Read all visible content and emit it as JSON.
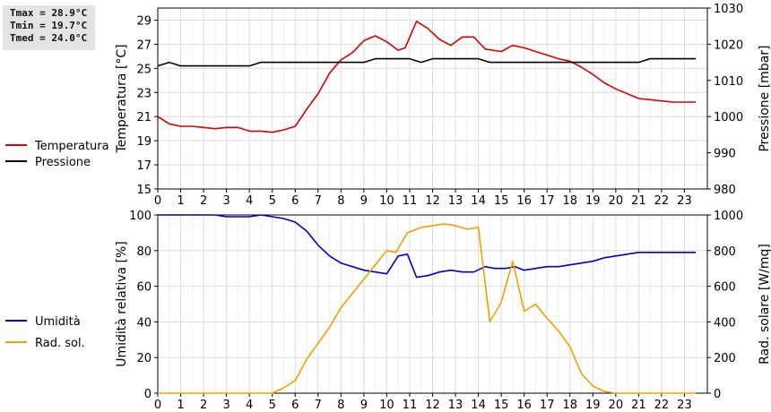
{
  "stats": {
    "tmax": "Tmax = 28.9°C",
    "tmin": "Tmin = 19.7°C",
    "tmed": "Tmed = 24.0°C"
  },
  "chart_data": [
    {
      "type": "line",
      "x_ticks": [
        "0",
        "1",
        "2",
        "3",
        "4",
        "5",
        "6",
        "7",
        "8",
        "9",
        "10",
        "11",
        "12",
        "13",
        "14",
        "15",
        "16",
        "17",
        "18",
        "19",
        "20",
        "21",
        "22",
        "23"
      ],
      "xlim": [
        0,
        24
      ],
      "ylabel_left": "Temperatura [°C]",
      "ylabel_right": "Pressione [mbar]",
      "ylim_left": [
        15,
        30
      ],
      "ylim_right": [
        980,
        1030
      ],
      "yticks_left": [
        "15",
        "17",
        "19",
        "21",
        "23",
        "25",
        "27",
        "29"
      ],
      "yticks_right": [
        "980",
        "990",
        "1000",
        "1010",
        "1020",
        "1030"
      ],
      "grid": true,
      "legend_placement": "left",
      "series": [
        {
          "name": "Temperatura",
          "axis": "left",
          "color": "#dd0000",
          "x": [
            0,
            0.5,
            1,
            1.5,
            2,
            2.5,
            3,
            3.5,
            4,
            4.5,
            5,
            5.5,
            6,
            6.5,
            7,
            7.5,
            8,
            8.5,
            9,
            9.5,
            10,
            10.5,
            10.8,
            11.3,
            11.8,
            12.3,
            12.8,
            13.3,
            13.8,
            14.3,
            15,
            15.5,
            16,
            16.5,
            17,
            17.5,
            18,
            18.5,
            19,
            19.5,
            20,
            20.5,
            21,
            21.5,
            22,
            22.5,
            23,
            23.5
          ],
          "y": [
            21.0,
            20.4,
            20.2,
            20.2,
            20.1,
            20.0,
            20.1,
            20.1,
            19.8,
            19.8,
            19.7,
            19.9,
            20.2,
            21.6,
            22.9,
            24.6,
            25.7,
            26.3,
            27.3,
            27.7,
            27.2,
            26.5,
            26.7,
            28.9,
            28.3,
            27.4,
            26.9,
            27.6,
            27.6,
            26.6,
            26.4,
            26.9,
            26.7,
            26.4,
            26.1,
            25.8,
            25.6,
            25.1,
            24.5,
            23.8,
            23.3,
            22.9,
            22.5,
            22.4,
            22.3,
            22.2,
            22.2,
            22.2
          ]
        },
        {
          "name": "Pressione",
          "axis": "right",
          "color": "#000000",
          "x": [
            0,
            0.5,
            1,
            1.5,
            2,
            2.5,
            3,
            3.5,
            4,
            4.5,
            5,
            5.5,
            6,
            6.5,
            7,
            7.5,
            8,
            8.5,
            9,
            9.5,
            10,
            10.5,
            11,
            11.5,
            12,
            12.5,
            13,
            13.5,
            14,
            14.5,
            15,
            15.5,
            16,
            16.5,
            17,
            17.5,
            18,
            18.5,
            19,
            19.5,
            20,
            20.5,
            21,
            21.5,
            22,
            22.5,
            23,
            23.5
          ],
          "y": [
            1014,
            1015,
            1014,
            1014,
            1014,
            1014,
            1014,
            1014,
            1014,
            1015,
            1015,
            1015,
            1015,
            1015,
            1015,
            1015,
            1015,
            1015,
            1015,
            1016,
            1016,
            1016,
            1016,
            1015,
            1016,
            1016,
            1016,
            1016,
            1016,
            1015,
            1015,
            1015,
            1015,
            1015,
            1015,
            1015,
            1015,
            1015,
            1015,
            1015,
            1015,
            1015,
            1015,
            1016,
            1016,
            1016,
            1016,
            1016
          ]
        }
      ]
    },
    {
      "type": "line",
      "x_ticks": [
        "0",
        "1",
        "2",
        "3",
        "4",
        "5",
        "6",
        "7",
        "8",
        "9",
        "10",
        "11",
        "12",
        "13",
        "14",
        "15",
        "16",
        "17",
        "18",
        "19",
        "20",
        "21",
        "22",
        "23"
      ],
      "xlim": [
        0,
        24
      ],
      "ylabel_left": "Umidità relativa [%]",
      "ylabel_right": "Rad. solare [W/mq]",
      "ylim_left": [
        0,
        100
      ],
      "ylim_right": [
        0,
        1000
      ],
      "yticks_left": [
        "0",
        "20",
        "40",
        "60",
        "80",
        "100"
      ],
      "yticks_right": [
        "0",
        "200",
        "400",
        "600",
        "800",
        "1000"
      ],
      "grid": true,
      "legend_placement": "left",
      "series": [
        {
          "name": "Umidità",
          "axis": "left",
          "color": "#0000cc",
          "x": [
            0,
            0.5,
            1,
            1.5,
            2,
            2.5,
            3,
            3.5,
            4,
            4.5,
            5,
            5.5,
            6,
            6.5,
            7,
            7.5,
            8,
            8.5,
            9,
            9.5,
            10,
            10.5,
            10.9,
            11.3,
            11.8,
            12.3,
            12.8,
            13.3,
            13.8,
            14.3,
            14.7,
            15.2,
            15.6,
            16,
            16.5,
            17,
            17.5,
            18,
            18.5,
            19,
            19.5,
            20,
            20.5,
            21,
            21.5,
            22,
            22.5,
            23,
            23.5
          ],
          "y": [
            100,
            100,
            100,
            100,
            100,
            100,
            99,
            99,
            99,
            100,
            99,
            98,
            96,
            91,
            83,
            77,
            73,
            71,
            69,
            68,
            67,
            77,
            78,
            65,
            66,
            68,
            69,
            68,
            68,
            71,
            70,
            70,
            71,
            69,
            70,
            71,
            71,
            72,
            73,
            74,
            76,
            77,
            78,
            79,
            79,
            79,
            79,
            79,
            79
          ]
        },
        {
          "name": "Rad. sol.",
          "axis": "right",
          "color": "#f0a000",
          "x": [
            0,
            1,
            2,
            3,
            4,
            5,
            5.5,
            6,
            6.5,
            7,
            7.5,
            8,
            8.5,
            9,
            9.5,
            10,
            10.4,
            10.9,
            11.5,
            12,
            12.5,
            13,
            13.5,
            14,
            14.5,
            15,
            15.5,
            16,
            16.5,
            17,
            17.5,
            18,
            18.5,
            19,
            19.5,
            20,
            20.5,
            21,
            22,
            23,
            23.5
          ],
          "y": [
            0,
            0,
            0,
            0,
            0,
            0,
            30,
            70,
            190,
            280,
            370,
            480,
            560,
            640,
            720,
            800,
            790,
            900,
            930,
            940,
            950,
            940,
            920,
            930,
            400,
            510,
            740,
            460,
            500,
            420,
            350,
            260,
            110,
            40,
            10,
            0,
            0,
            0,
            0,
            0,
            0
          ]
        }
      ]
    }
  ]
}
